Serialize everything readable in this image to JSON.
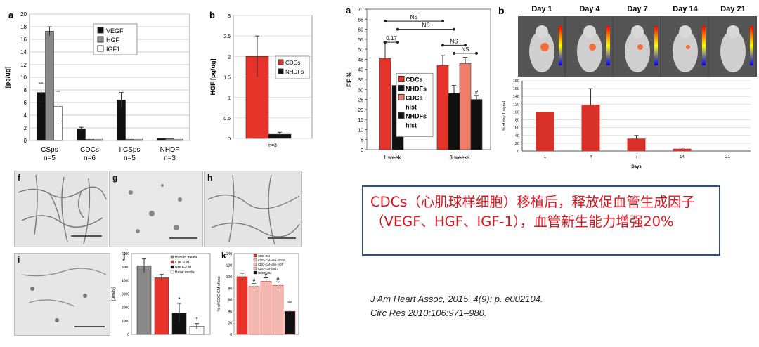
{
  "note_text": "CDCs（心肌球样细胞）移植后，释放促血管生成因子（VEGF、HGF、IGF-1），血管新生能力增强20%",
  "citations": [
    "J Am Heart Assoc, 2015. 4(9): p. e002104.",
    "Circ Res 2010;106:971–980."
  ],
  "panel_labels": {
    "a1": "a",
    "b1": "b",
    "f": "f",
    "g": "g",
    "h": "h",
    "i": "i",
    "j": "j",
    "k": "k",
    "a2": "a",
    "b2": "b"
  },
  "colors": {
    "red": "#e8332a",
    "black": "#111111",
    "gray": "#888888",
    "white": "#ffffff",
    "salmon": "#ef7d6a"
  },
  "chart_data": [
    {
      "id": "a1",
      "type": "bar",
      "ylabel": "[pg/ug]",
      "ylim": [
        0,
        20
      ],
      "yticks": [
        0,
        2,
        4,
        6,
        8,
        10,
        12,
        14,
        16,
        18,
        20
      ],
      "categories": [
        "CSps\nn=5",
        "CDCs\nn=6",
        "IICSps\nn=5",
        "NHDF\nn=3"
      ],
      "series": [
        {
          "name": "VEGF",
          "color": "#111111",
          "values": [
            7.6,
            1.8,
            6.4,
            0.3
          ]
        },
        {
          "name": "HGF",
          "color": "#888888",
          "values": [
            17.3,
            0.2,
            0.2,
            0.3
          ]
        },
        {
          "name": "IGF1",
          "color": "#ffffff",
          "values": [
            5.4,
            0.2,
            0.2,
            0.2
          ]
        }
      ],
      "errors": [
        [
          1.5,
          0.3,
          1.2,
          0.1
        ],
        [
          0.7,
          0.05,
          0.05,
          0.05
        ],
        [
          2.4,
          0.05,
          0.05,
          0.05
        ]
      ],
      "legend": "top-right"
    },
    {
      "id": "b1",
      "type": "bar",
      "ylabel": "HGF [pg/ug]",
      "ylim": [
        0,
        3
      ],
      "yticks": [
        0,
        0.5,
        1,
        1.5,
        2,
        2.5,
        3
      ],
      "xlabel": "n=3",
      "series": [
        {
          "name": "CDCs",
          "color": "#e8332a",
          "values": [
            2.0
          ],
          "error": 0.5
        },
        {
          "name": "NHDFs",
          "color": "#111111",
          "values": [
            0.1
          ],
          "error": 0.05
        }
      ],
      "legend": "top-right"
    },
    {
      "id": "j",
      "type": "bar",
      "ylabel": "[pixels]",
      "ylim": [
        0,
        6000
      ],
      "yticks": [
        0,
        1000,
        2000,
        3000,
        4000,
        5000,
        6000
      ],
      "series": [
        {
          "name": "Human media",
          "color": "#888888",
          "value": 5100,
          "error": 500
        },
        {
          "name": "CDC-CM",
          "color": "#e8332a",
          "value": 4200,
          "error": 250
        },
        {
          "name": "NHDF-CM",
          "color": "#111111",
          "value": 1600,
          "error": 700
        },
        {
          "name": "Basal media",
          "color": "#ffffff",
          "value": 600,
          "error": 200
        }
      ],
      "annotations": [
        "*",
        "*"
      ]
    },
    {
      "id": "k",
      "type": "bar",
      "ylabel": "% of CDC-CM effect",
      "ylim": [
        0,
        140
      ],
      "yticks": [
        0,
        20,
        40,
        60,
        80,
        100,
        120,
        140
      ],
      "series": [
        {
          "name": "CDC-CM",
          "color": "#e8332a",
          "value": 100,
          "error": 6
        },
        {
          "name": "CDC-CM+anti-VEGF",
          "color": "#f2b8b0",
          "value": 83,
          "error": 5
        },
        {
          "name": "CDC-CM+anti-HGF",
          "color": "#f2b8b0",
          "value": 92,
          "error": 6
        },
        {
          "name": "CDC-CM+both",
          "color": "#f2b8b0",
          "value": 85,
          "error": 6
        },
        {
          "name": "NHDF-CM",
          "color": "#111111",
          "value": 40,
          "error": 16
        }
      ],
      "annotations": [
        "#",
        "#",
        "#"
      ]
    },
    {
      "id": "a2",
      "type": "bar",
      "ylabel": "EF %",
      "ylim": [
        0,
        70
      ],
      "yticks": [
        0,
        5,
        10,
        15,
        20,
        25,
        30,
        35,
        40,
        45,
        50,
        55,
        60,
        65,
        70
      ],
      "categories": [
        "1 week",
        "3 weeks"
      ],
      "series": [
        {
          "name": "CDCs",
          "color": "#e8332a",
          "values": [
            45.5,
            42
          ]
        },
        {
          "name": "NHDFs",
          "color": "#111111",
          "values": [
            32,
            28
          ]
        },
        {
          "name": "CDCs hist",
          "color": "#ef7d6a",
          "values": [
            null,
            43
          ]
        },
        {
          "name": "NHDFs hist",
          "color": "#111111",
          "values": [
            null,
            25
          ]
        }
      ],
      "errors": [
        [
          8,
          5
        ],
        [
          4,
          4
        ],
        [
          null,
          3
        ],
        [
          null,
          2
        ]
      ],
      "annotations": [
        "NS",
        "NS",
        "0.17",
        "NS",
        "NS",
        "#",
        "#"
      ],
      "legend": "center"
    },
    {
      "id": "b2",
      "type": "bar",
      "ylabel": "% of day 1 signal",
      "xlabel": "Days",
      "ylim": [
        0,
        180
      ],
      "yticks": [
        0,
        20,
        40,
        60,
        80,
        100,
        120,
        140,
        160,
        180
      ],
      "categories": [
        "1",
        "4",
        "7",
        "14",
        "21"
      ],
      "values": [
        100,
        118,
        32,
        6,
        0
      ],
      "errors": [
        0,
        42,
        8,
        2,
        0
      ],
      "image_days": [
        "Day 1",
        "Day 4",
        "Day 7",
        "Day 14",
        "Day 21"
      ]
    }
  ]
}
